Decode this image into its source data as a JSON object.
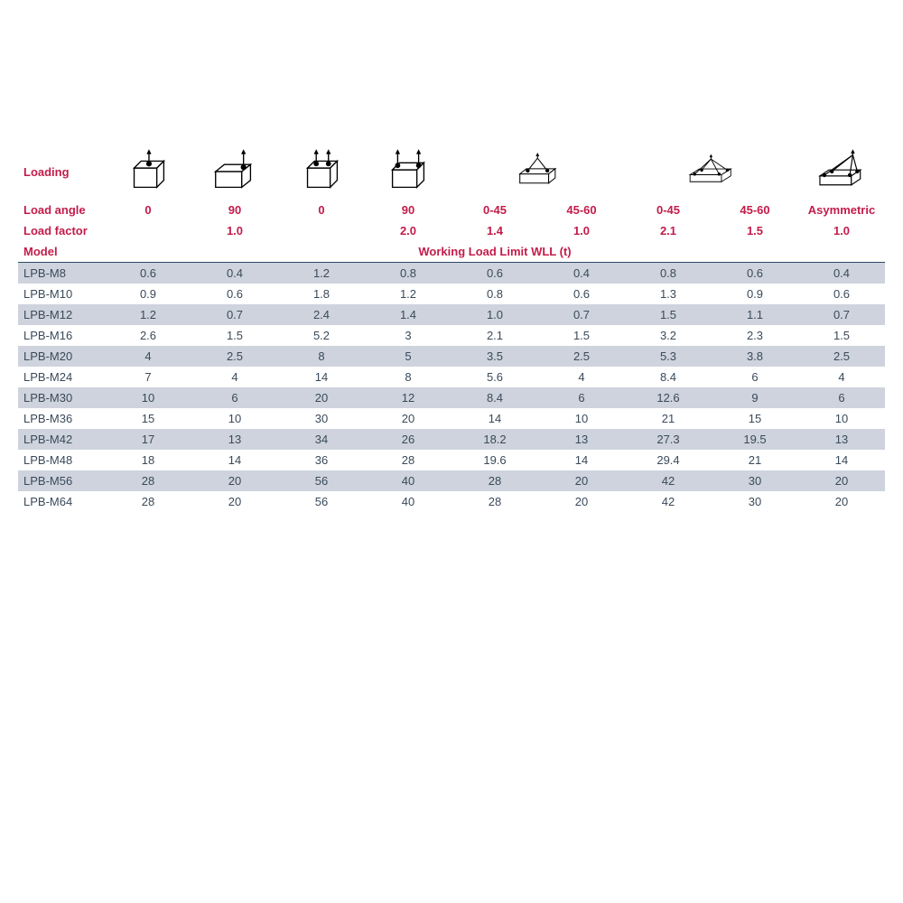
{
  "labels": {
    "loading": "Loading",
    "load_angle": "Load angle",
    "load_factor": "Load factor",
    "model": "Model",
    "wll": "Working Load Limit WLL (t)"
  },
  "angles": [
    "0",
    "90",
    "0",
    "90",
    "0-45",
    "45-60",
    "0-45",
    "45-60",
    "Asymmetric"
  ],
  "factors": [
    "",
    "1.0",
    "",
    "2.0",
    "1.4",
    "1.0",
    "2.1",
    "1.5",
    "1.0"
  ],
  "rows": [
    {
      "model": "LPB-M8",
      "v": [
        "0.6",
        "0.4",
        "1.2",
        "0.8",
        "0.6",
        "0.4",
        "0.8",
        "0.6",
        "0.4"
      ]
    },
    {
      "model": "LPB-M10",
      "v": [
        "0.9",
        "0.6",
        "1.8",
        "1.2",
        "0.8",
        "0.6",
        "1.3",
        "0.9",
        "0.6"
      ]
    },
    {
      "model": "LPB-M12",
      "v": [
        "1.2",
        "0.7",
        "2.4",
        "1.4",
        "1.0",
        "0.7",
        "1.5",
        "1.1",
        "0.7"
      ]
    },
    {
      "model": "LPB-M16",
      "v": [
        "2.6",
        "1.5",
        "5.2",
        "3",
        "2.1",
        "1.5",
        "3.2",
        "2.3",
        "1.5"
      ]
    },
    {
      "model": "LPB-M20",
      "v": [
        "4",
        "2.5",
        "8",
        "5",
        "3.5",
        "2.5",
        "5.3",
        "3.8",
        "2.5"
      ]
    },
    {
      "model": "LPB-M24",
      "v": [
        "7",
        "4",
        "14",
        "8",
        "5.6",
        "4",
        "8.4",
        "6",
        "4"
      ]
    },
    {
      "model": "LPB-M30",
      "v": [
        "10",
        "6",
        "20",
        "12",
        "8.4",
        "6",
        "12.6",
        "9",
        "6"
      ]
    },
    {
      "model": "LPB-M36",
      "v": [
        "15",
        "10",
        "30",
        "20",
        "14",
        "10",
        "21",
        "15",
        "10"
      ]
    },
    {
      "model": "LPB-M42",
      "v": [
        "17",
        "13",
        "34",
        "26",
        "18.2",
        "13",
        "27.3",
        "19.5",
        "13"
      ]
    },
    {
      "model": "LPB-M48",
      "v": [
        "18",
        "14",
        "36",
        "28",
        "19.6",
        "14",
        "29.4",
        "21",
        "14"
      ]
    },
    {
      "model": "LPB-M56",
      "v": [
        "28",
        "20",
        "56",
        "40",
        "28",
        "20",
        "42",
        "30",
        "20"
      ]
    },
    {
      "model": "LPB-M64",
      "v": [
        "28",
        "20",
        "56",
        "40",
        "28",
        "20",
        "42",
        "30",
        "20"
      ]
    }
  ],
  "style": {
    "header_color": "#c31c4a",
    "row_alt_bg": "#ced3dd",
    "text_color": "#3a4a5a",
    "rule_color": "#2a4a6a"
  }
}
